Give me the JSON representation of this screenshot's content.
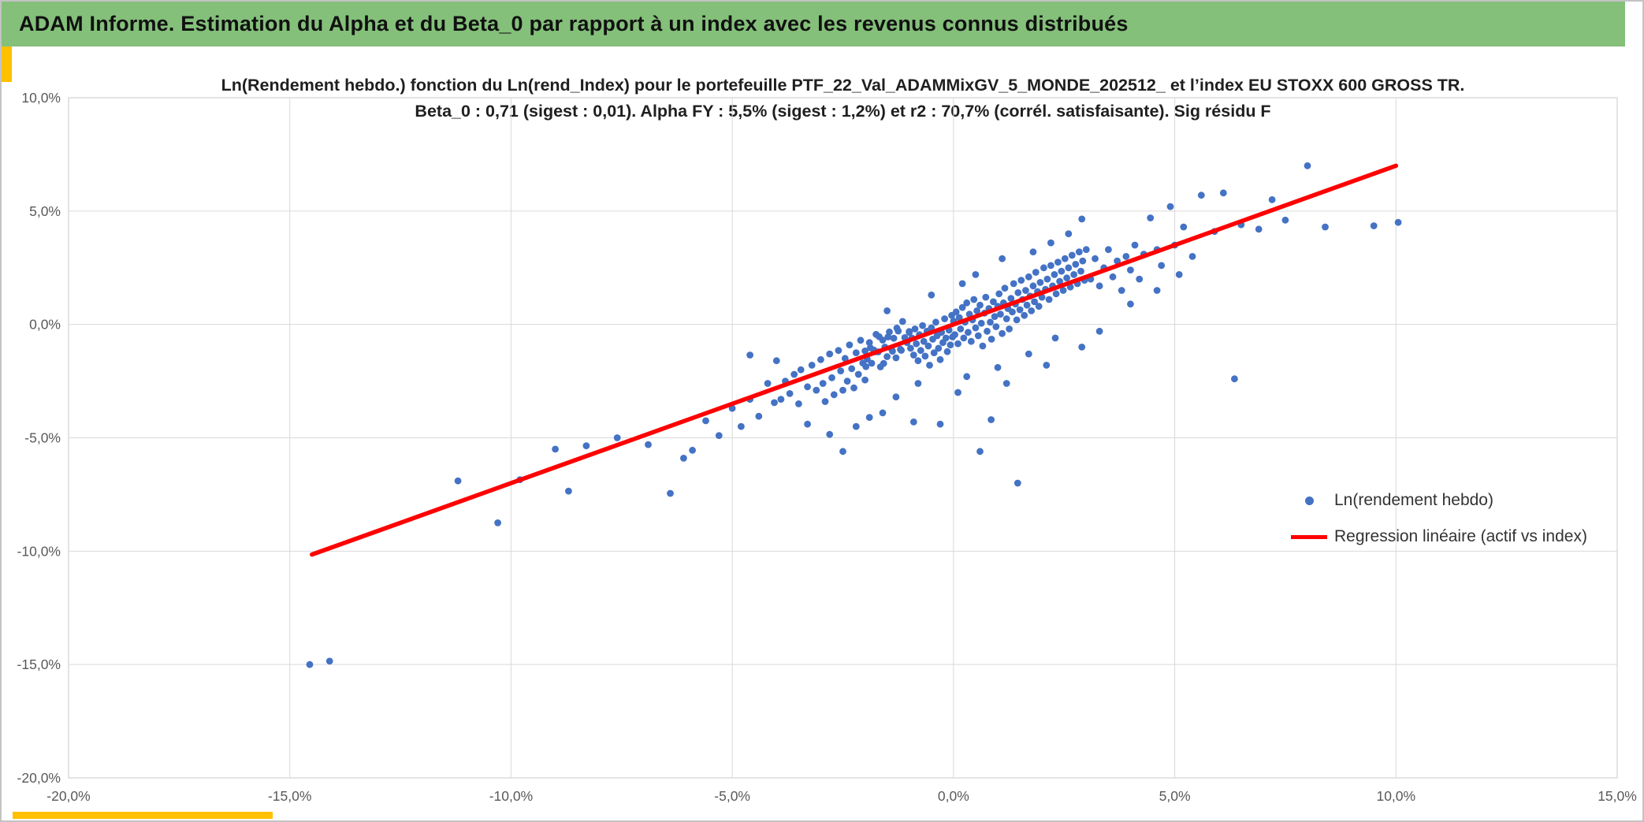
{
  "header": {
    "title": "ADAM Informe. Estimation du Alpha et du Beta_0 par rapport à un index avec les revenus connus distribués"
  },
  "colors": {
    "header_green": "#84c07a",
    "accent_gold": "#ffc000"
  },
  "stats": {
    "beta_0": "0,71",
    "beta_sigest": "0,01",
    "alpha_fy": "5,5%",
    "alpha_sigest": "1,2%",
    "r2": "70,7%"
  },
  "chart_data": {
    "type": "scatter",
    "title_line1": "Ln(Rendement hebdo.) fonction du Ln(rend_Index) pour le portefeuille PTF_22_Val_ADAMMixGV_5_MONDE_202512_ et l’index EU STOXX 600 GROSS TR.",
    "title_line2": "Beta_0 : 0,71 (sigest : 0,01). Alpha FY : 5,5% (sigest : 1,2%) et r2 : 70,7% (corrél. satisfaisante). Sig résidu F",
    "xlabel": "",
    "ylabel": "",
    "xlim": [
      -20,
      15
    ],
    "ylim": [
      -20,
      10
    ],
    "grid": true,
    "xticks": [
      {
        "v": -20,
        "label": "-20,0%"
      },
      {
        "v": -15,
        "label": "-15,0%"
      },
      {
        "v": -10,
        "label": "-10,0%"
      },
      {
        "v": -5,
        "label": "-5,0%"
      },
      {
        "v": 0,
        "label": "0,0%"
      },
      {
        "v": 5,
        "label": "5,0%"
      },
      {
        "v": 10,
        "label": "10,0%"
      },
      {
        "v": 15,
        "label": "15,0%"
      }
    ],
    "yticks": [
      {
        "v": 10,
        "label": "10,0%"
      },
      {
        "v": 5,
        "label": "5,0%"
      },
      {
        "v": 0,
        "label": "0,0%"
      },
      {
        "v": -5,
        "label": "-5,0%"
      },
      {
        "v": -10,
        "label": "-10,0%"
      },
      {
        "v": -15,
        "label": "-15,0%"
      },
      {
        "v": -20,
        "label": "-20,0%"
      }
    ],
    "colors": {
      "point": "#4472c4",
      "line": "#ff0000",
      "grid": "#d9d9d9",
      "tick_text": "#595959"
    },
    "regression": {
      "slope": 0.71,
      "intercept": 0.1,
      "x1": -14.5,
      "y1": -10.15,
      "x2": 10.0,
      "y2": 7.0
    },
    "legend": [
      {
        "label": "Ln(rendement hebdo)",
        "marker": "dot",
        "color": "#4472c4"
      },
      {
        "label": "Regression linéaire (actif vs index)",
        "marker": "line",
        "color": "#ff0000"
      }
    ],
    "legend_position": "lower-right-inside",
    "series": [
      {
        "name": "Ln(rendement hebdo)",
        "points": [
          [
            -14.55,
            -15.0
          ],
          [
            -14.1,
            -14.85
          ],
          [
            -11.2,
            -6.9
          ],
          [
            -10.3,
            -8.75
          ],
          [
            -9.8,
            -6.85
          ],
          [
            -9.0,
            -5.5
          ],
          [
            -8.7,
            -7.35
          ],
          [
            -8.3,
            -5.35
          ],
          [
            -7.6,
            -5.0
          ],
          [
            -6.9,
            -5.3
          ],
          [
            -6.4,
            -7.45
          ],
          [
            -6.1,
            -5.9
          ],
          [
            -5.9,
            -5.55
          ],
          [
            -5.6,
            -4.25
          ],
          [
            -5.3,
            -4.9
          ],
          [
            -5.0,
            -3.7
          ],
          [
            -4.8,
            -4.5
          ],
          [
            -4.6,
            -1.35
          ],
          [
            -4.6,
            -3.3
          ],
          [
            -4.4,
            -4.05
          ],
          [
            -4.2,
            -2.6
          ],
          [
            -4.05,
            -3.45
          ],
          [
            -4.0,
            -1.6
          ],
          [
            -3.9,
            -3.3
          ],
          [
            -3.8,
            -2.5
          ],
          [
            -3.7,
            -3.05
          ],
          [
            -3.6,
            -2.2
          ],
          [
            -3.5,
            -3.5
          ],
          [
            -3.45,
            -2.0
          ],
          [
            -3.3,
            -4.4
          ],
          [
            -3.3,
            -2.75
          ],
          [
            -3.2,
            -1.8
          ],
          [
            -3.1,
            -2.9
          ],
          [
            -3.0,
            -1.55
          ],
          [
            -2.95,
            -2.6
          ],
          [
            -2.9,
            -3.4
          ],
          [
            -2.8,
            -4.85
          ],
          [
            -2.8,
            -1.3
          ],
          [
            -2.75,
            -2.35
          ],
          [
            -2.7,
            -3.1
          ],
          [
            -2.6,
            -1.15
          ],
          [
            -2.55,
            -2.05
          ],
          [
            -2.5,
            -5.6
          ],
          [
            -2.5,
            -2.9
          ],
          [
            -2.45,
            -1.5
          ],
          [
            -2.4,
            -2.5
          ],
          [
            -2.35,
            -0.9
          ],
          [
            -2.3,
            -1.95
          ],
          [
            -2.25,
            -2.8
          ],
          [
            -2.2,
            -4.5
          ],
          [
            -2.2,
            -1.25
          ],
          [
            -2.15,
            -2.2
          ],
          [
            -2.1,
            -0.7
          ],
          [
            -2.05,
            -1.7
          ],
          [
            -2.0,
            -2.45
          ],
          [
            -2.0,
            -1.17
          ],
          [
            -1.95,
            -1.53
          ],
          [
            -1.9,
            -0.8
          ],
          [
            -1.9,
            -4.1
          ],
          [
            -1.85,
            -1.71
          ],
          [
            -1.8,
            -1.13
          ],
          [
            -1.75,
            -0.44
          ],
          [
            -1.7,
            -1.21
          ],
          [
            -1.65,
            -1.87
          ],
          [
            -1.6,
            -3.9
          ],
          [
            -1.6,
            -0.69
          ],
          [
            -1.55,
            -1.0
          ],
          [
            -1.5,
            -1.42
          ],
          [
            -1.5,
            0.6
          ],
          [
            -1.45,
            -0.33
          ],
          [
            -1.4,
            -1.09
          ],
          [
            -1.35,
            -0.61
          ],
          [
            -1.3,
            -3.2
          ],
          [
            -1.3,
            -1.47
          ],
          [
            -1.25,
            -0.29
          ],
          [
            -1.2,
            -1.1
          ],
          [
            -1.15,
            0.13
          ],
          [
            -1.1,
            -0.58
          ],
          [
            -1.05,
            -0.8
          ],
          [
            -1.0,
            -0.31
          ],
          [
            -1.98,
            -1.86
          ],
          [
            -1.88,
            -1.03
          ],
          [
            -1.78,
            -1.21
          ],
          [
            -1.68,
            -0.54
          ],
          [
            -1.58,
            -1.72
          ],
          [
            -1.48,
            -0.55
          ],
          [
            -1.38,
            -1.18
          ],
          [
            -1.28,
            -0.16
          ],
          [
            -1.18,
            -1.14
          ],
          [
            -1.0,
            -0.35
          ],
          [
            -0.97,
            -1.05
          ],
          [
            -0.94,
            -0.6
          ],
          [
            -0.9,
            -4.3
          ],
          [
            -0.9,
            -1.35
          ],
          [
            -0.87,
            -0.2
          ],
          [
            -0.84,
            -0.85
          ],
          [
            -0.8,
            -2.6
          ],
          [
            -0.8,
            -1.6
          ],
          [
            -0.77,
            -0.45
          ],
          [
            -0.74,
            -1.15
          ],
          [
            -0.7,
            -0.05
          ],
          [
            -0.67,
            -0.75
          ],
          [
            -0.64,
            -1.4
          ],
          [
            -0.6,
            -0.3
          ],
          [
            -0.57,
            -0.95
          ],
          [
            -0.54,
            -1.8
          ],
          [
            -0.5,
            1.3
          ],
          [
            -0.5,
            -0.15
          ],
          [
            -0.47,
            -0.65
          ],
          [
            -0.44,
            -1.25
          ],
          [
            -0.4,
            0.1
          ],
          [
            -0.37,
            -0.5
          ],
          [
            -0.34,
            -1.05
          ],
          [
            -0.3,
            -4.4
          ],
          [
            -0.3,
            -1.55
          ],
          [
            -0.27,
            -0.35
          ],
          [
            -0.24,
            -0.8
          ],
          [
            -0.2,
            0.25
          ],
          [
            -0.17,
            -0.6
          ],
          [
            -0.14,
            -1.2
          ],
          [
            -0.1,
            -0.25
          ],
          [
            -0.07,
            -0.9
          ],
          [
            -0.04,
            0.4
          ],
          [
            -0.02,
            -0.55
          ],
          [
            0.0,
            0.15
          ],
          [
            0.03,
            -0.45
          ],
          [
            0.06,
            0.55
          ],
          [
            0.1,
            -3.0
          ],
          [
            0.1,
            -0.85
          ],
          [
            0.13,
            0.3
          ],
          [
            0.16,
            -0.2
          ],
          [
            0.2,
            1.8
          ],
          [
            0.2,
            0.75
          ],
          [
            0.23,
            -0.6
          ],
          [
            0.26,
            0.1
          ],
          [
            0.3,
            -2.3
          ],
          [
            0.3,
            0.95
          ],
          [
            0.33,
            -0.35
          ],
          [
            0.36,
            0.45
          ],
          [
            0.4,
            -0.75
          ],
          [
            0.43,
            0.2
          ],
          [
            0.46,
            1.1
          ],
          [
            0.5,
            2.2
          ],
          [
            0.5,
            -0.15
          ],
          [
            0.53,
            0.6
          ],
          [
            0.56,
            -0.5
          ],
          [
            0.6,
            -5.6
          ],
          [
            0.6,
            0.85
          ],
          [
            0.63,
            0.05
          ],
          [
            0.66,
            -0.95
          ],
          [
            0.7,
            0.5
          ],
          [
            0.73,
            1.2
          ],
          [
            0.76,
            -0.3
          ],
          [
            0.8,
            0.7
          ],
          [
            0.83,
            0.1
          ],
          [
            0.85,
            -4.2
          ],
          [
            0.86,
            -0.65
          ],
          [
            0.9,
            1.0
          ],
          [
            0.93,
            0.35
          ],
          [
            0.96,
            -0.1
          ],
          [
            1.0,
            -1.9
          ],
          [
            1.0,
            0.8
          ],
          [
            1.03,
            1.35
          ],
          [
            1.06,
            0.45
          ],
          [
            1.1,
            2.9
          ],
          [
            1.1,
            -0.4
          ],
          [
            1.13,
            0.95
          ],
          [
            1.16,
            1.6
          ],
          [
            1.2,
            -2.6
          ],
          [
            1.2,
            0.25
          ],
          [
            1.23,
            0.7
          ],
          [
            1.26,
            -0.2
          ],
          [
            1.3,
            1.15
          ],
          [
            1.33,
            0.55
          ],
          [
            1.36,
            1.8
          ],
          [
            1.4,
            0.9
          ],
          [
            1.43,
            0.2
          ],
          [
            1.45,
            -7.0
          ],
          [
            1.46,
            1.4
          ],
          [
            1.5,
            0.65
          ],
          [
            1.53,
            1.95
          ],
          [
            1.56,
            1.1
          ],
          [
            1.6,
            0.4
          ],
          [
            1.63,
            1.5
          ],
          [
            1.66,
            0.85
          ],
          [
            1.7,
            -1.3
          ],
          [
            1.7,
            2.1
          ],
          [
            1.73,
            1.25
          ],
          [
            1.76,
            0.6
          ],
          [
            1.8,
            3.2
          ],
          [
            1.8,
            1.7
          ],
          [
            1.83,
            1.0
          ],
          [
            1.86,
            2.3
          ],
          [
            1.9,
            1.45
          ],
          [
            1.93,
            0.8
          ],
          [
            1.96,
            1.85
          ],
          [
            2.0,
            1.2
          ],
          [
            2.04,
            2.5
          ],
          [
            2.08,
            1.55
          ],
          [
            2.1,
            -1.8
          ],
          [
            2.12,
            2.0
          ],
          [
            2.16,
            1.1
          ],
          [
            2.2,
            3.6
          ],
          [
            2.2,
            2.6
          ],
          [
            2.24,
            1.7
          ],
          [
            2.28,
            2.2
          ],
          [
            2.3,
            -0.6
          ],
          [
            2.32,
            1.35
          ],
          [
            2.36,
            2.75
          ],
          [
            2.4,
            1.9
          ],
          [
            2.44,
            2.35
          ],
          [
            2.48,
            1.5
          ],
          [
            2.52,
            2.9
          ],
          [
            2.56,
            2.05
          ],
          [
            2.6,
            4.0
          ],
          [
            2.6,
            2.5
          ],
          [
            2.64,
            1.65
          ],
          [
            2.68,
            3.05
          ],
          [
            2.72,
            2.2
          ],
          [
            2.76,
            2.65
          ],
          [
            2.8,
            1.8
          ],
          [
            2.84,
            3.2
          ],
          [
            2.88,
            2.35
          ],
          [
            2.9,
            4.65
          ],
          [
            2.9,
            -1.0
          ],
          [
            2.92,
            2.8
          ],
          [
            2.96,
            1.95
          ],
          [
            3.0,
            3.3
          ],
          [
            3.1,
            2.0
          ],
          [
            3.2,
            2.9
          ],
          [
            3.3,
            -0.3
          ],
          [
            3.3,
            1.7
          ],
          [
            3.4,
            2.5
          ],
          [
            3.5,
            3.3
          ],
          [
            3.6,
            2.1
          ],
          [
            3.7,
            2.8
          ],
          [
            3.8,
            1.5
          ],
          [
            3.9,
            3.0
          ],
          [
            4.0,
            0.9
          ],
          [
            4.0,
            2.4
          ],
          [
            4.1,
            3.5
          ],
          [
            4.2,
            2.0
          ],
          [
            4.3,
            3.1
          ],
          [
            4.45,
            4.7
          ],
          [
            4.6,
            1.5
          ],
          [
            4.6,
            3.3
          ],
          [
            4.7,
            2.6
          ],
          [
            4.9,
            5.2
          ],
          [
            5.0,
            3.5
          ],
          [
            5.1,
            2.2
          ],
          [
            5.2,
            4.3
          ],
          [
            5.4,
            3.0
          ],
          [
            5.6,
            5.7
          ],
          [
            5.9,
            4.1
          ],
          [
            6.1,
            5.8
          ],
          [
            6.35,
            -2.4
          ],
          [
            6.5,
            4.4
          ],
          [
            6.9,
            4.2
          ],
          [
            7.2,
            5.5
          ],
          [
            7.5,
            4.6
          ],
          [
            8.0,
            7.0
          ],
          [
            8.4,
            4.3
          ],
          [
            9.5,
            4.35
          ],
          [
            10.05,
            4.5
          ]
        ]
      }
    ]
  }
}
